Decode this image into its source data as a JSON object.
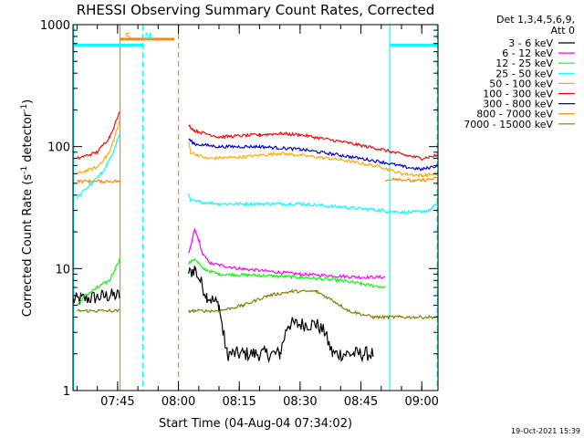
{
  "chart_data": {
    "type": "line",
    "title": "RHESSI Observing Summary Count Rates, Corrected",
    "xlabel": "Start Time (04-Aug-04 07:34:02)",
    "ylabel_main": "Corrected Count Rate (s",
    "ylabel_sup1": "-1",
    "ylabel_mid": " detector",
    "ylabel_sup2": "-1",
    "ylabel_end": ")",
    "yscale": "log",
    "ylim": [
      1,
      1000
    ],
    "xlim_min": [
      454,
      544
    ],
    "x_ticks": [
      {
        "m": 465,
        "label": "07:45"
      },
      {
        "m": 480,
        "label": "08:00"
      },
      {
        "m": 495,
        "label": "08:15"
      },
      {
        "m": 510,
        "label": "08:30"
      },
      {
        "m": 525,
        "label": "08:45"
      },
      {
        "m": 540,
        "label": "09:00"
      }
    ],
    "y_ticks": [
      {
        "v": 1,
        "label": "1"
      },
      {
        "v": 10,
        "label": "10"
      },
      {
        "v": 100,
        "label": "100"
      },
      {
        "v": 1000,
        "label": "1000"
      }
    ],
    "legend_header": [
      "Det 1,3,4,5,6,9,",
      "Att 0"
    ],
    "legend_position": "right",
    "series": [
      {
        "name": "3 - 6 keV",
        "color": "#000000",
        "points": [
          [
            454,
            5.5
          ],
          [
            463,
            6
          ],
          [
            465.5,
            6
          ],
          [
            482.5,
            9
          ],
          [
            484,
            10
          ],
          [
            487,
            6
          ],
          [
            490,
            5
          ],
          [
            491,
            3
          ],
          [
            492,
            2
          ],
          [
            505,
            2
          ],
          [
            507,
            3.5
          ],
          [
            514,
            3.5
          ],
          [
            516,
            3
          ],
          [
            518,
            2
          ],
          [
            528,
            2
          ]
        ]
      },
      {
        "name": "6 - 12 keV",
        "color": "#ff00ff",
        "points": [
          [
            482.5,
            13
          ],
          [
            483,
            15
          ],
          [
            484,
            21
          ],
          [
            485,
            17
          ],
          [
            486,
            13
          ],
          [
            488,
            11
          ],
          [
            495,
            10
          ],
          [
            510,
            9
          ],
          [
            525,
            8.5
          ],
          [
            531,
            8.5
          ]
        ]
      },
      {
        "name": "12 - 25 keV",
        "color": "#00ff00",
        "points": [
          [
            455,
            5
          ],
          [
            457,
            6
          ],
          [
            460,
            7
          ],
          [
            463,
            8
          ],
          [
            465.5,
            12
          ],
          [
            482.5,
            11
          ],
          [
            484,
            12
          ],
          [
            486,
            10
          ],
          [
            490,
            9
          ],
          [
            500,
            8.8
          ],
          [
            510,
            8.5
          ],
          [
            520,
            8
          ],
          [
            525,
            7.5
          ],
          [
            531,
            7
          ]
        ]
      },
      {
        "name": "25 - 50 keV",
        "color": "#00ffff",
        "points": [
          [
            455,
            38
          ],
          [
            458,
            48
          ],
          [
            461,
            60
          ],
          [
            464,
            90
          ],
          [
            465.5,
            130
          ],
          [
            482.5,
            40
          ],
          [
            483,
            36
          ],
          [
            490,
            34
          ],
          [
            500,
            34
          ],
          [
            510,
            34
          ],
          [
            520,
            32
          ],
          [
            530,
            30
          ],
          [
            535,
            29
          ],
          [
            538,
            29
          ],
          [
            542,
            30
          ],
          [
            544,
            35
          ]
        ]
      },
      {
        "name": "50 - 100 keV",
        "color": "#ffaa00",
        "points": [
          [
            455,
            60
          ],
          [
            460,
            68
          ],
          [
            463,
            90
          ],
          [
            465.5,
            160
          ],
          [
            482.5,
            110
          ],
          [
            483,
            90
          ],
          [
            487,
            80
          ],
          [
            495,
            82
          ],
          [
            505,
            88
          ],
          [
            510,
            85
          ],
          [
            520,
            78
          ],
          [
            530,
            68
          ],
          [
            535,
            60
          ],
          [
            540,
            58
          ],
          [
            544,
            60
          ]
        ]
      },
      {
        "name": "100 - 300 keV",
        "color": "#ff0000",
        "points": [
          [
            455,
            80
          ],
          [
            460,
            90
          ],
          [
            463,
            120
          ],
          [
            465.5,
            190
          ],
          [
            482.5,
            150
          ],
          [
            484,
            135
          ],
          [
            490,
            120
          ],
          [
            500,
            125
          ],
          [
            505,
            128
          ],
          [
            510,
            125
          ],
          [
            520,
            110
          ],
          [
            530,
            95
          ],
          [
            536,
            85
          ],
          [
            540,
            80
          ],
          [
            544,
            85
          ]
        ]
      },
      {
        "name": "300 - 800 keV",
        "color": "#0000cc",
        "points": [
          [
            482.5,
            115
          ],
          [
            484,
            105
          ],
          [
            490,
            100
          ],
          [
            500,
            100
          ],
          [
            510,
            95
          ],
          [
            520,
            85
          ],
          [
            530,
            75
          ],
          [
            536,
            68
          ],
          [
            540,
            65
          ],
          [
            544,
            70
          ]
        ]
      },
      {
        "name": "800 - 7000 keV",
        "color": "#ff8800",
        "points": [
          [
            455,
            52
          ],
          [
            458,
            52
          ],
          [
            461,
            52
          ],
          [
            465.5,
            52
          ],
          [
            531,
            52
          ],
          [
            533,
            55
          ],
          [
            538,
            52
          ],
          [
            544,
            55
          ]
        ]
      },
      {
        "name": "7000 - 15000 keV",
        "color": "#808000",
        "points": [
          [
            455,
            4.5
          ],
          [
            460,
            4.5
          ],
          [
            463,
            4.5
          ],
          [
            465.5,
            4.5
          ],
          [
            482.5,
            4.5
          ],
          [
            490,
            4.5
          ],
          [
            496,
            5
          ],
          [
            502,
            6
          ],
          [
            508,
            6.5
          ],
          [
            514,
            6.5
          ],
          [
            518,
            5.5
          ],
          [
            522,
            4.5
          ],
          [
            528,
            4
          ],
          [
            535,
            4
          ],
          [
            544,
            4
          ]
        ]
      }
    ],
    "annotations": [
      {
        "text": "S",
        "m": 467.5,
        "color": "#ff8800"
      },
      {
        "text": "N",
        "m": 472.5,
        "color": "#00ffff"
      }
    ],
    "bars": [
      {
        "m0": 454,
        "m1": 471,
        "v": 680,
        "color": "#00ffff"
      },
      {
        "m0": 465.5,
        "m1": 479,
        "v": 760,
        "color": "#ff8800"
      },
      {
        "m0": 532,
        "m1": 544,
        "v": 680,
        "color": "#00ffff"
      }
    ],
    "vlines": [
      {
        "m": 454.2,
        "color": "#00ffff",
        "style": "solid"
      },
      {
        "m": 465.6,
        "color": "#ff8800",
        "style": "solid"
      },
      {
        "m": 471.2,
        "color": "#00ffff",
        "style": "dashed"
      },
      {
        "m": 480.0,
        "color": "#ff8800",
        "style": "dashed"
      },
      {
        "m": 532.1,
        "color": "#00ffff",
        "style": "solid"
      },
      {
        "m": 543.8,
        "color": "#00ffff",
        "style": "dashed"
      }
    ],
    "footer_date": "19-Oct-2021 15:39"
  }
}
